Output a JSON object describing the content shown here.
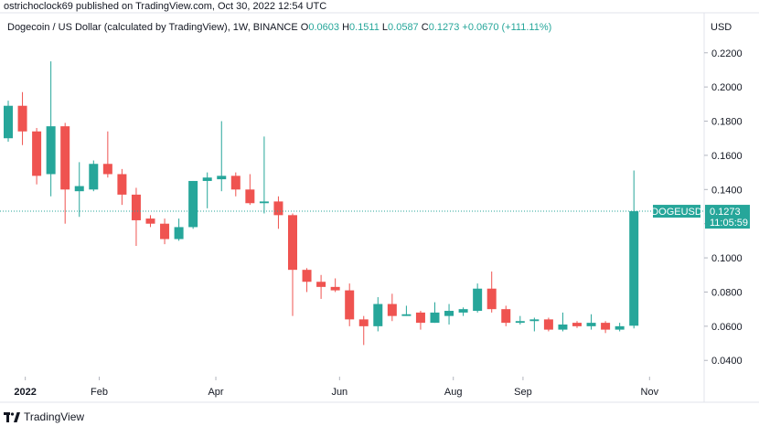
{
  "header": {
    "publisher": "ostrichoclock69 published on TradingView.com, Oct 30, 2022 12:54 UTC"
  },
  "legend": {
    "symbol": "Dogecoin / US Dollar (calculated by TradingView), 1W, BINANCE",
    "o_label": "O",
    "o_value": "0.0603",
    "h_label": "H",
    "h_value": "0.1511",
    "l_label": "L",
    "l_value": "0.0587",
    "c_label": "C",
    "c_value": "0.1273",
    "change": "+0.0670 (+111.11%)"
  },
  "currency": "USD",
  "price_tag": {
    "ticker": "DOGEUSD",
    "price": "0.1273",
    "countdown": "11:05:59"
  },
  "footer": {
    "brand": "TradingView"
  },
  "colors": {
    "up": "#26a69a",
    "down": "#ef5350",
    "tag_bg": "#26a69a",
    "grid": "#f0f3fa",
    "text": "#131722"
  },
  "chart_data": {
    "type": "candlestick",
    "title": "Dogecoin / US Dollar (calculated by TradingView), 1W, BINANCE",
    "ylim": [
      0.0305,
      0.2295
    ],
    "y_ticks": [
      "0.2200",
      "0.2000",
      "0.1800",
      "0.1600",
      "0.1400",
      "0.1200",
      "0.1000",
      "0.0800",
      "0.0600",
      "0.0400"
    ],
    "x_ticks": [
      "2022",
      "Feb",
      "Apr",
      "Jun",
      "Aug",
      "Sep",
      "Nov"
    ],
    "grid": false,
    "series": [
      {
        "week": "2021-12-20",
        "o": 0.17,
        "h": 0.192,
        "l": 0.168,
        "c": 0.189
      },
      {
        "week": "2021-12-27",
        "o": 0.189,
        "h": 0.197,
        "l": 0.166,
        "c": 0.174
      },
      {
        "week": "2022-01-03",
        "o": 0.174,
        "h": 0.176,
        "l": 0.143,
        "c": 0.148
      },
      {
        "week": "2022-01-10",
        "o": 0.149,
        "h": 0.215,
        "l": 0.136,
        "c": 0.177
      },
      {
        "week": "2022-01-17",
        "o": 0.177,
        "h": 0.179,
        "l": 0.12,
        "c": 0.14
      },
      {
        "week": "2022-01-24",
        "o": 0.139,
        "h": 0.156,
        "l": 0.124,
        "c": 0.142
      },
      {
        "week": "2022-01-31",
        "o": 0.14,
        "h": 0.157,
        "l": 0.139,
        "c": 0.155
      },
      {
        "week": "2022-02-07",
        "o": 0.155,
        "h": 0.174,
        "l": 0.147,
        "c": 0.149
      },
      {
        "week": "2022-02-14",
        "o": 0.149,
        "h": 0.152,
        "l": 0.131,
        "c": 0.137
      },
      {
        "week": "2022-02-21",
        "o": 0.137,
        "h": 0.141,
        "l": 0.107,
        "c": 0.122
      },
      {
        "week": "2022-02-28",
        "o": 0.123,
        "h": 0.125,
        "l": 0.118,
        "c": 0.12
      },
      {
        "week": "2022-03-07",
        "o": 0.12,
        "h": 0.123,
        "l": 0.108,
        "c": 0.111
      },
      {
        "week": "2022-03-14",
        "o": 0.111,
        "h": 0.123,
        "l": 0.11,
        "c": 0.118
      },
      {
        "week": "2022-03-21",
        "o": 0.118,
        "h": 0.145,
        "l": 0.117,
        "c": 0.145
      },
      {
        "week": "2022-03-28",
        "o": 0.145,
        "h": 0.15,
        "l": 0.129,
        "c": 0.147
      },
      {
        "week": "2022-04-04",
        "o": 0.146,
        "h": 0.18,
        "l": 0.139,
        "c": 0.148
      },
      {
        "week": "2022-04-11",
        "o": 0.148,
        "h": 0.15,
        "l": 0.136,
        "c": 0.14
      },
      {
        "week": "2022-04-18",
        "o": 0.14,
        "h": 0.149,
        "l": 0.131,
        "c": 0.132
      },
      {
        "week": "2022-04-25",
        "o": 0.132,
        "h": 0.171,
        "l": 0.126,
        "c": 0.133
      },
      {
        "week": "2022-05-02",
        "o": 0.133,
        "h": 0.136,
        "l": 0.117,
        "c": 0.125
      },
      {
        "week": "2022-05-09",
        "o": 0.125,
        "h": 0.126,
        "l": 0.066,
        "c": 0.093
      },
      {
        "week": "2022-05-16",
        "o": 0.093,
        "h": 0.094,
        "l": 0.08,
        "c": 0.086
      },
      {
        "week": "2022-05-23",
        "o": 0.086,
        "h": 0.09,
        "l": 0.076,
        "c": 0.083
      },
      {
        "week": "2022-05-30",
        "o": 0.083,
        "h": 0.088,
        "l": 0.08,
        "c": 0.081
      },
      {
        "week": "2022-06-06",
        "o": 0.081,
        "h": 0.085,
        "l": 0.06,
        "c": 0.064
      },
      {
        "week": "2022-06-13",
        "o": 0.064,
        "h": 0.066,
        "l": 0.049,
        "c": 0.06
      },
      {
        "week": "2022-06-20",
        "o": 0.06,
        "h": 0.077,
        "l": 0.057,
        "c": 0.073
      },
      {
        "week": "2022-06-27",
        "o": 0.073,
        "h": 0.079,
        "l": 0.063,
        "c": 0.066
      },
      {
        "week": "2022-07-04",
        "o": 0.066,
        "h": 0.072,
        "l": 0.066,
        "c": 0.067
      },
      {
        "week": "2022-07-11",
        "o": 0.068,
        "h": 0.069,
        "l": 0.058,
        "c": 0.062
      },
      {
        "week": "2022-07-18",
        "o": 0.062,
        "h": 0.074,
        "l": 0.062,
        "c": 0.068
      },
      {
        "week": "2022-07-25",
        "o": 0.066,
        "h": 0.073,
        "l": 0.061,
        "c": 0.069
      },
      {
        "week": "2022-08-01",
        "o": 0.068,
        "h": 0.071,
        "l": 0.066,
        "c": 0.07
      },
      {
        "week": "2022-08-08",
        "o": 0.069,
        "h": 0.085,
        "l": 0.068,
        "c": 0.082
      },
      {
        "week": "2022-08-15",
        "o": 0.082,
        "h": 0.092,
        "l": 0.068,
        "c": 0.07
      },
      {
        "week": "2022-08-22",
        "o": 0.07,
        "h": 0.072,
        "l": 0.06,
        "c": 0.062
      },
      {
        "week": "2022-08-29",
        "o": 0.062,
        "h": 0.066,
        "l": 0.061,
        "c": 0.063
      },
      {
        "week": "2022-09-05",
        "o": 0.063,
        "h": 0.065,
        "l": 0.057,
        "c": 0.064
      },
      {
        "week": "2022-09-12",
        "o": 0.064,
        "h": 0.065,
        "l": 0.057,
        "c": 0.058
      },
      {
        "week": "2022-09-19",
        "o": 0.058,
        "h": 0.068,
        "l": 0.057,
        "c": 0.061
      },
      {
        "week": "2022-09-26",
        "o": 0.062,
        "h": 0.063,
        "l": 0.059,
        "c": 0.06
      },
      {
        "week": "2022-10-03",
        "o": 0.06,
        "h": 0.067,
        "l": 0.058,
        "c": 0.062
      },
      {
        "week": "2022-10-10",
        "o": 0.062,
        "h": 0.063,
        "l": 0.056,
        "c": 0.058
      },
      {
        "week": "2022-10-17",
        "o": 0.058,
        "h": 0.062,
        "l": 0.057,
        "c": 0.06
      },
      {
        "week": "2022-10-24",
        "o": 0.0603,
        "h": 0.1511,
        "l": 0.0587,
        "c": 0.1273
      }
    ]
  }
}
